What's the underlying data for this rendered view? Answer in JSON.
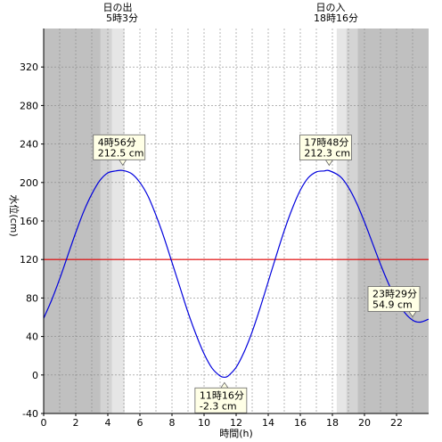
{
  "chart_data": {
    "type": "line",
    "xlabel": "時間(h)",
    "ylabel": "水位(cm)",
    "xlim": [
      0,
      24
    ],
    "ylim": [
      -40,
      360
    ],
    "x_ticks": [
      0,
      2,
      4,
      6,
      8,
      10,
      12,
      14,
      16,
      18,
      20,
      22
    ],
    "y_ticks": [
      -40,
      0,
      40,
      80,
      120,
      160,
      200,
      240,
      280,
      320
    ],
    "reference_line": {
      "value": 120,
      "color": "#e00000"
    },
    "series": [
      {
        "color": "#0000dd",
        "x": [
          0,
          0.5,
          1,
          1.5,
          2,
          2.5,
          3,
          3.5,
          4,
          4.5,
          4.93,
          5.5,
          6,
          6.5,
          7,
          7.5,
          8,
          8.5,
          9,
          9.5,
          10,
          10.5,
          11,
          11.27,
          11.5,
          12,
          12.5,
          13,
          13.5,
          14,
          14.5,
          15,
          15.5,
          16,
          16.5,
          17,
          17.5,
          17.8,
          18.5,
          19,
          19.5,
          20,
          20.5,
          21,
          21.5,
          22,
          22.5,
          23,
          23.48,
          24
        ],
        "y": [
          59,
          78,
          100,
          124,
          148,
          170,
          188,
          202,
          210,
          212,
          212.5,
          209,
          200,
          186,
          166,
          143,
          117,
          91,
          65,
          42,
          22,
          7,
          -1,
          -2.3,
          -1,
          8,
          24,
          45,
          70,
          97,
          124,
          150,
          173,
          192,
          205,
          211,
          212,
          212.3,
          206,
          195,
          179,
          159,
          137,
          115,
          95,
          78,
          65,
          57,
          54.9,
          58
        ]
      }
    ],
    "annotations": [
      {
        "line1": "4時56分",
        "line2": "212.5 cm",
        "x": 4.93,
        "y": 212.5
      },
      {
        "line1": "11時16分",
        "line2": "-2.3 cm",
        "x": 11.27,
        "y": -2.3
      },
      {
        "line1": "17時48分",
        "line2": "212.3 cm",
        "x": 17.8,
        "y": 212.3
      },
      {
        "line1": "23時29分",
        "line2": "54.9 cm",
        "x": 23.48,
        "y": 54.9
      }
    ],
    "sun": {
      "sunrise": {
        "label": "日の出",
        "time": "5時3分",
        "x": 5.05
      },
      "sunset": {
        "label": "日の入",
        "time": "18時16分",
        "x": 18.27
      }
    },
    "colors": {
      "night": "#c0c0c0",
      "twilight_dark": "#d4d4d4",
      "twilight_light": "#e6e6e6",
      "day": "#ffffff",
      "grid": "#888888"
    }
  }
}
